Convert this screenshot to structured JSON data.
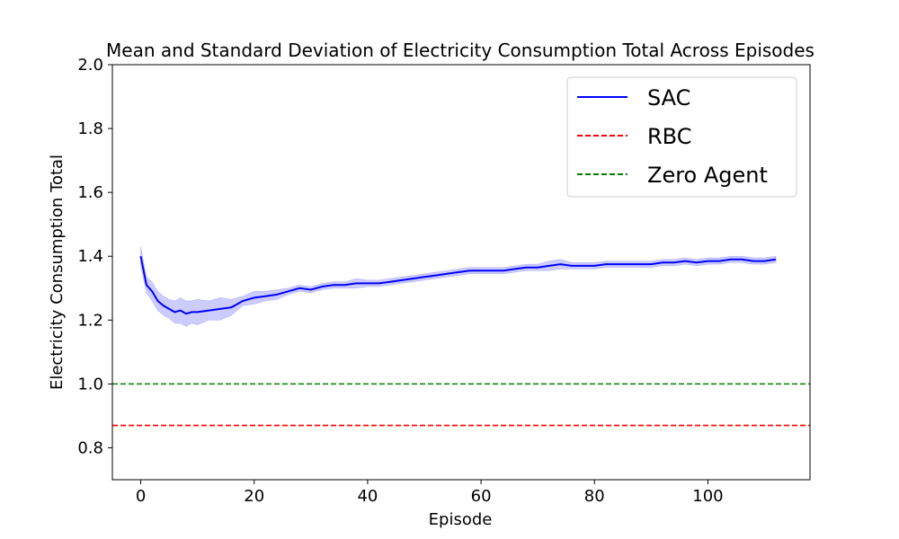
{
  "chart_data": {
    "type": "line",
    "title": "Mean and Standard Deviation of Electricity Consumption Total Across Episodes",
    "xlabel": "Episode",
    "ylabel": "Electricity Consumption Total",
    "xlim": [
      -5,
      118
    ],
    "ylim": [
      0.7,
      2.0
    ],
    "xticks": [
      0,
      20,
      40,
      60,
      80,
      100
    ],
    "yticks": [
      0.8,
      1.0,
      1.2,
      1.4,
      1.6,
      1.8,
      2.0
    ],
    "xtick_labels": [
      "0",
      "20",
      "40",
      "60",
      "80",
      "100"
    ],
    "ytick_labels": [
      "0.8",
      "1.0",
      "1.2",
      "1.4",
      "1.6",
      "1.8",
      "2.0"
    ],
    "grid": false,
    "legend_position": "top-right",
    "series": [
      {
        "name": "SAC",
        "color": "#0000ff",
        "style": "solid",
        "x": [
          0,
          1,
          2,
          3,
          4,
          5,
          6,
          7,
          8,
          9,
          10,
          12,
          14,
          16,
          18,
          20,
          22,
          24,
          26,
          28,
          30,
          32,
          34,
          36,
          38,
          40,
          42,
          44,
          46,
          48,
          50,
          52,
          54,
          56,
          58,
          60,
          62,
          64,
          66,
          68,
          70,
          72,
          74,
          76,
          78,
          80,
          82,
          84,
          86,
          88,
          90,
          92,
          94,
          96,
          98,
          100,
          102,
          104,
          106,
          108,
          110,
          112
        ],
        "y": [
          1.4,
          1.31,
          1.29,
          1.26,
          1.245,
          1.235,
          1.225,
          1.23,
          1.22,
          1.225,
          1.225,
          1.23,
          1.235,
          1.24,
          1.26,
          1.27,
          1.275,
          1.28,
          1.29,
          1.3,
          1.295,
          1.305,
          1.31,
          1.31,
          1.315,
          1.315,
          1.315,
          1.32,
          1.325,
          1.33,
          1.335,
          1.34,
          1.345,
          1.35,
          1.355,
          1.355,
          1.355,
          1.355,
          1.36,
          1.365,
          1.365,
          1.37,
          1.375,
          1.37,
          1.37,
          1.37,
          1.375,
          1.375,
          1.375,
          1.375,
          1.375,
          1.38,
          1.38,
          1.385,
          1.38,
          1.385,
          1.385,
          1.39,
          1.39,
          1.385,
          1.385,
          1.39
        ],
        "std": [
          0.03,
          0.025,
          0.03,
          0.03,
          0.03,
          0.03,
          0.035,
          0.04,
          0.04,
          0.035,
          0.04,
          0.03,
          0.035,
          0.025,
          0.015,
          0.02,
          0.015,
          0.015,
          0.01,
          0.01,
          0.01,
          0.01,
          0.01,
          0.01,
          0.015,
          0.01,
          0.01,
          0.01,
          0.01,
          0.01,
          0.01,
          0.01,
          0.01,
          0.01,
          0.01,
          0.01,
          0.01,
          0.01,
          0.01,
          0.01,
          0.01,
          0.015,
          0.015,
          0.01,
          0.01,
          0.01,
          0.01,
          0.01,
          0.01,
          0.01,
          0.01,
          0.01,
          0.01,
          0.01,
          0.01,
          0.01,
          0.01,
          0.01,
          0.01,
          0.01,
          0.01,
          0.01
        ]
      },
      {
        "name": "RBC",
        "color": "#ff0000",
        "style": "dashed",
        "constant": 0.87
      },
      {
        "name": "Zero Agent",
        "color": "#008000",
        "style": "dashed",
        "constant": 1.0
      }
    ]
  }
}
